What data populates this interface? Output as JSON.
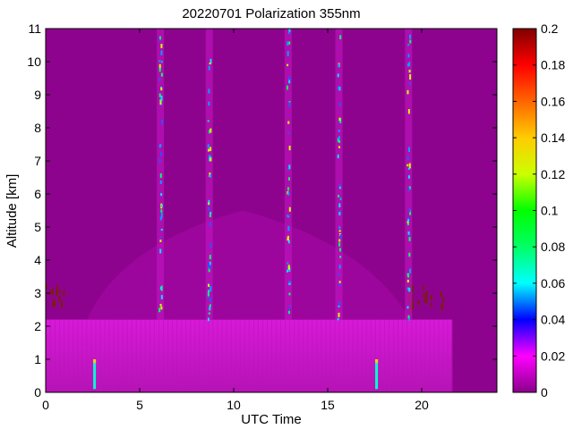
{
  "chart_data": {
    "type": "heatmap",
    "title": "20220701 Polarization 355nm",
    "xlabel": "UTC Time",
    "ylabel": "Altitude [km]",
    "xlim": [
      0,
      24
    ],
    "ylim": [
      0,
      11
    ],
    "x_ticks": [
      "0",
      "5",
      "10",
      "15",
      "20"
    ],
    "y_ticks": [
      "0",
      "1",
      "2",
      "3",
      "4",
      "5",
      "6",
      "7",
      "8",
      "9",
      "10",
      "11"
    ],
    "colorbar": {
      "range": [
        0,
        0.2
      ],
      "ticks": [
        "0",
        "0.02",
        "0.04",
        "0.06",
        "0.08",
        "0.1",
        "0.12",
        "0.14",
        "0.16",
        "0.18",
        "0.2"
      ],
      "colormap": "hsv-like (magenta to dark red)"
    },
    "features": {
      "near_surface_layer_top_km": 2.2,
      "background_value": 0.005,
      "vertical_streaks_utc": [
        6.1,
        8.7,
        12.9,
        15.6,
        19.3
      ],
      "high_value_spikes_utc": [
        2.6,
        17.6
      ],
      "dark_red_patches_utc": [
        [
          0,
          1.0
        ],
        [
          19.7,
          21.2
        ],
        [
          19.3,
          19.5
        ]
      ],
      "data_gaps_utc": [
        [
          21.6,
          24
        ]
      ]
    }
  }
}
